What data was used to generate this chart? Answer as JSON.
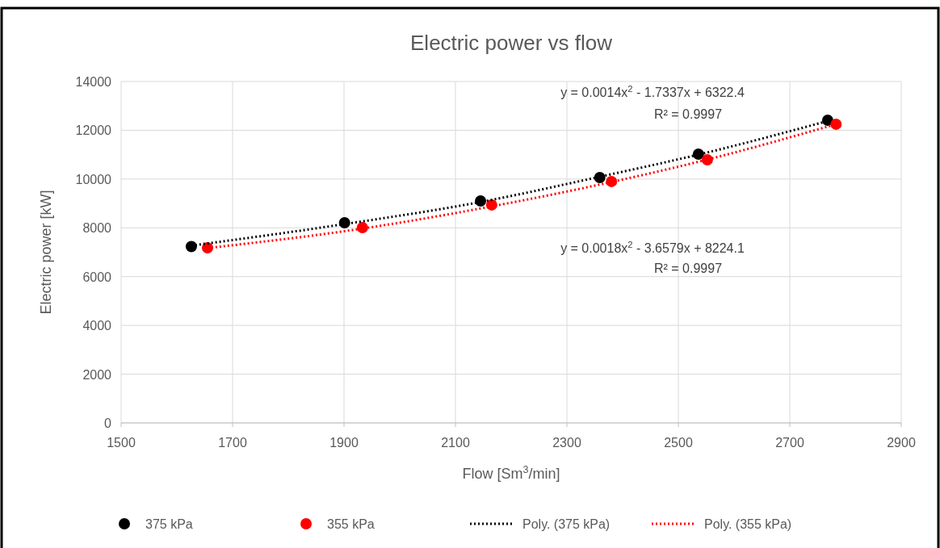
{
  "chart_data": {
    "type": "scatter",
    "title": "Electric power vs flow",
    "xlabel": "Flow [Sm$^{3}$/min]",
    "ylabel": "Electric power [kW]",
    "xlim": [
      1500,
      2900
    ],
    "xticks": [
      1500,
      1700,
      1900,
      2100,
      2300,
      2500,
      2700,
      2900
    ],
    "ylim": [
      0,
      14000
    ],
    "yticks": [
      0,
      2000,
      4000,
      6000,
      8000,
      10000,
      12000,
      14000
    ],
    "grid": true,
    "legend": "bottom",
    "series": [
      {
        "name": "375 kPa",
        "marker": "circle",
        "color": "#000000",
        "x": [
          1626,
          1901,
          2145,
          2359,
          2536,
          2768
        ],
        "values": [
          7230,
          8210,
          9100,
          10060,
          11020,
          12410
        ]
      },
      {
        "name": "355 kPa",
        "marker": "circle",
        "color": "#ff0000",
        "x": [
          1655,
          1933,
          2165,
          2380,
          2552,
          2783
        ],
        "values": [
          7180,
          8010,
          8940,
          9900,
          10790,
          12250
        ]
      },
      {
        "name": "Poly. (375 kPa)",
        "type": "line",
        "line_style": "dotted",
        "color": "#000000",
        "x": [
          1626,
          1900,
          2150,
          2350,
          2550,
          2768
        ],
        "values": [
          7270,
          8150,
          9080,
          10050,
          11080,
          12380
        ]
      },
      {
        "name": "Poly. (355 kPa)",
        "type": "line",
        "line_style": "dotted",
        "color": "#ff0000",
        "x": [
          1655,
          1933,
          2165,
          2380,
          2552,
          2783
        ],
        "values": [
          7170,
          7970,
          8880,
          9880,
          10800,
          12250
        ]
      }
    ],
    "annotations": [
      "y = 0.0014x$^{2}$ - 1.7337x + 6322.4",
      "R² = 0.9997",
      "y = 0.0018x$^{2}$ - 3.6579x + 8224.1",
      "R² = 0.9997"
    ]
  }
}
